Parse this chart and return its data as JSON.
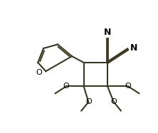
{
  "bg_color": "#ffffff",
  "line_color": "#3a3820",
  "text_color": "#000000",
  "linewidth": 1.5,
  "figsize": [
    2.22,
    1.87
  ],
  "dpi": 100,
  "xlim": [
    0.0,
    10.0
  ],
  "ylim": [
    1.5,
    9.0
  ],
  "furan_o_label": "O",
  "ome_o_label": "O",
  "cn_label": "N",
  "font_size_N": 9,
  "font_size_O": 8
}
